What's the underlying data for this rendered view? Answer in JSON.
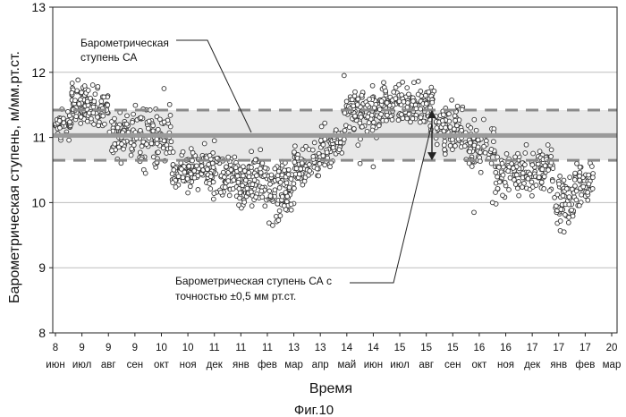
{
  "chart_data": {
    "type": "scatter",
    "title": "",
    "xlabel": "Время",
    "ylabel": "Барометрическая ступень, м/мм.рт.ст.",
    "caption": "Фиг.10",
    "ylim": [
      8,
      13
    ],
    "yticks": [
      "8",
      "9",
      "10",
      "11",
      "12",
      "13"
    ],
    "x_ticks": [
      {
        "num": "8",
        "month": "июн"
      },
      {
        "num": "9",
        "month": "июл"
      },
      {
        "num": "9",
        "month": "авг"
      },
      {
        "num": "9",
        "month": "сен"
      },
      {
        "num": "10",
        "month": "окт"
      },
      {
        "num": "10",
        "month": "ноя"
      },
      {
        "num": "11",
        "month": "дек"
      },
      {
        "num": "11",
        "month": "янв"
      },
      {
        "num": "11",
        "month": "фев"
      },
      {
        "num": "13",
        "month": "мар"
      },
      {
        "num": "13",
        "month": "апр"
      },
      {
        "num": "14",
        "month": "май"
      },
      {
        "num": "14",
        "month": "июн"
      },
      {
        "num": "15",
        "month": "июл"
      },
      {
        "num": "15",
        "month": "авг"
      },
      {
        "num": "15",
        "month": "сен"
      },
      {
        "num": "16",
        "month": "окт"
      },
      {
        "num": "16",
        "month": "ноя"
      },
      {
        "num": "17",
        "month": "дек"
      },
      {
        "num": "17",
        "month": "янв"
      },
      {
        "num": "17",
        "month": "фев"
      },
      {
        "num": "20",
        "month": "мар"
      }
    ],
    "reference_lines": {
      "ca_value": 11.03,
      "upper_bound": 11.42,
      "lower_bound": 10.65
    },
    "annotations": {
      "ca_label_line1": "Барометрическая",
      "ca_label_line2": "ступень СА",
      "band_label_line1": "Барометрическая ступень СА с",
      "band_label_line2": "точностью ±0,5 мм рт.ст."
    },
    "clusters": [
      {
        "x0": 0.0,
        "x1": 0.6,
        "center": 11.2,
        "spread": 0.25,
        "n": 40
      },
      {
        "x0": 0.6,
        "x1": 1.15,
        "center": 11.55,
        "spread": 0.3,
        "n": 75
      },
      {
        "x0": 1.15,
        "x1": 2.0,
        "center": 11.45,
        "spread": 0.3,
        "n": 70
      },
      {
        "x0": 2.0,
        "x1": 3.0,
        "center": 11.05,
        "spread": 0.4,
        "n": 70
      },
      {
        "x0": 3.0,
        "x1": 3.8,
        "center": 10.95,
        "spread": 0.45,
        "n": 50
      },
      {
        "x0": 3.8,
        "x1": 4.4,
        "center": 11.0,
        "spread": 0.45,
        "n": 40
      },
      {
        "x0": 4.4,
        "x1": 5.6,
        "center": 10.5,
        "spread": 0.3,
        "n": 85
      },
      {
        "x0": 5.6,
        "x1": 6.8,
        "center": 10.45,
        "spread": 0.35,
        "n": 85
      },
      {
        "x0": 6.8,
        "x1": 8.0,
        "center": 10.3,
        "spread": 0.45,
        "n": 100
      },
      {
        "x0": 8.0,
        "x1": 9.0,
        "center": 10.2,
        "spread": 0.45,
        "n": 85
      },
      {
        "x0": 9.0,
        "x1": 10.0,
        "center": 10.55,
        "spread": 0.35,
        "n": 70
      },
      {
        "x0": 10.0,
        "x1": 10.9,
        "center": 10.85,
        "spread": 0.3,
        "n": 60
      },
      {
        "x0": 10.9,
        "x1": 12.2,
        "center": 11.35,
        "spread": 0.4,
        "n": 110
      },
      {
        "x0": 12.2,
        "x1": 14.3,
        "center": 11.5,
        "spread": 0.35,
        "n": 160
      },
      {
        "x0": 14.3,
        "x1": 15.4,
        "center": 11.15,
        "spread": 0.35,
        "n": 80
      },
      {
        "x0": 15.4,
        "x1": 16.6,
        "center": 10.85,
        "spread": 0.35,
        "n": 75
      },
      {
        "x0": 16.6,
        "x1": 17.8,
        "center": 10.45,
        "spread": 0.4,
        "n": 80
      },
      {
        "x0": 17.8,
        "x1": 18.8,
        "center": 10.5,
        "spread": 0.35,
        "n": 65
      },
      {
        "x0": 18.8,
        "x1": 19.6,
        "center": 10.05,
        "spread": 0.4,
        "n": 60
      },
      {
        "x0": 19.6,
        "x1": 20.3,
        "center": 10.3,
        "spread": 0.35,
        "n": 50
      }
    ],
    "outliers": [
      [
        1.6,
        11.78
      ],
      [
        4.1,
        11.75
      ],
      [
        5.0,
        10.15
      ],
      [
        6.0,
        10.95
      ],
      [
        8.2,
        9.65
      ],
      [
        10.9,
        11.95
      ],
      [
        11.5,
        10.6
      ],
      [
        15.8,
        9.85
      ],
      [
        16.5,
        10.0
      ],
      [
        19.2,
        9.55
      ],
      [
        12.0,
        10.55
      ],
      [
        3.4,
        10.45
      ]
    ],
    "grid": "horizontal",
    "legend": "none"
  }
}
